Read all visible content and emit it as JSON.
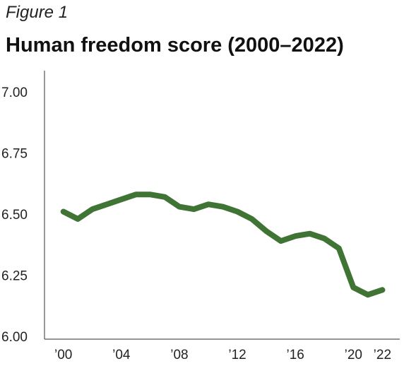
{
  "figure_label": "Figure 1",
  "chart_data": {
    "type": "line",
    "title": "Human freedom score (2000–2022)",
    "xlabel": "",
    "ylabel": "",
    "x": [
      2000,
      2001,
      2002,
      2003,
      2004,
      2005,
      2006,
      2007,
      2008,
      2009,
      2010,
      2011,
      2012,
      2013,
      2014,
      2015,
      2016,
      2017,
      2018,
      2019,
      2020,
      2021,
      2022
    ],
    "series": [
      {
        "values": [
          6.51,
          6.48,
          6.52,
          6.54,
          6.56,
          6.58,
          6.58,
          6.57,
          6.53,
          6.52,
          6.54,
          6.53,
          6.51,
          6.48,
          6.43,
          6.39,
          6.41,
          6.42,
          6.4,
          6.36,
          6.2,
          6.17,
          6.19
        ]
      }
    ],
    "ylim": [
      6.0,
      7.0
    ],
    "xlim": [
      1998.7,
      2023.2
    ],
    "yticks": [
      6.0,
      6.25,
      6.5,
      6.75,
      7.0
    ],
    "ytick_labels": [
      "6.00",
      "6.25",
      "6.50",
      "6.75",
      "7.00"
    ],
    "xticks": [
      2000,
      2004,
      2008,
      2012,
      2016,
      2020,
      2022
    ],
    "xtick_labels": [
      "’00",
      "’04",
      "’08",
      "’12",
      "’16",
      "’20",
      "’22"
    ],
    "grid": false,
    "legend": "none",
    "line_color": "#3f7434",
    "axis_color": "#555555"
  }
}
